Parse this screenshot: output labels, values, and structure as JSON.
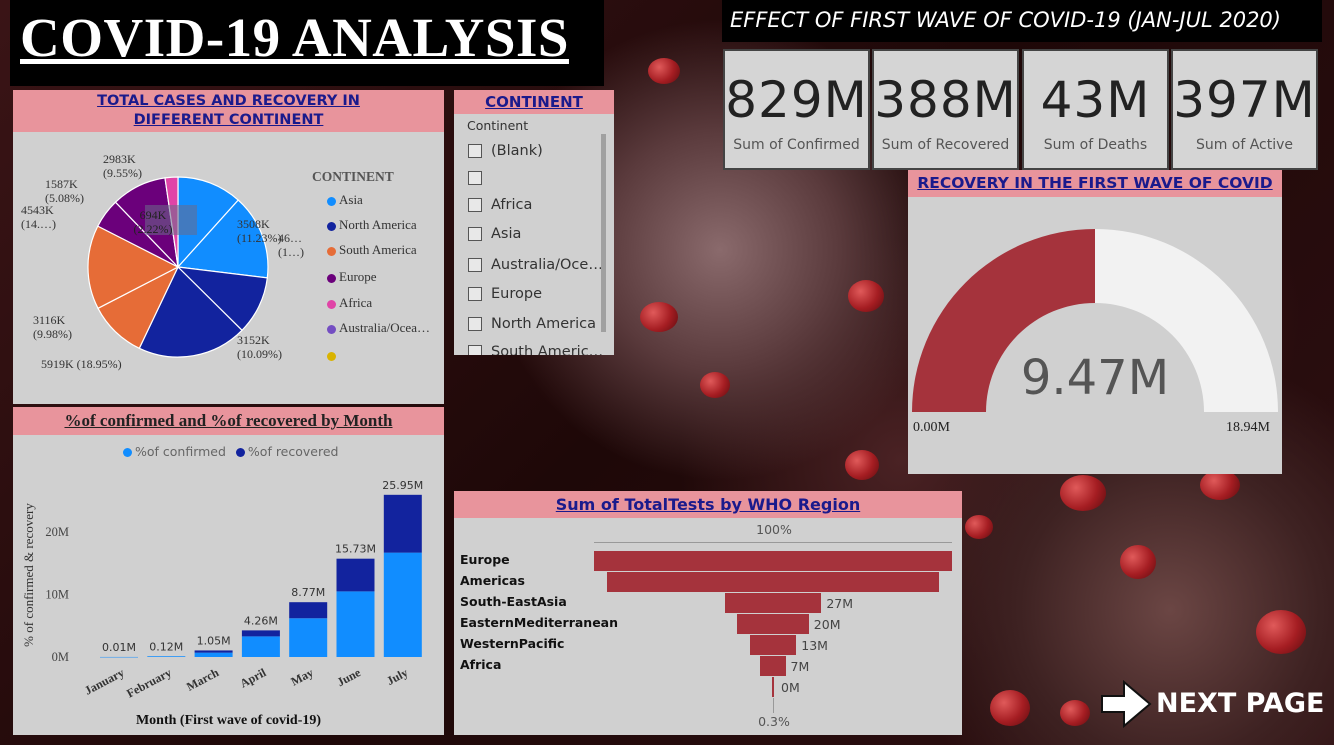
{
  "title": "COVID-19 ANALYSIS",
  "subtitle": "EFFECT OF FIRST WAVE OF COVID-19 (JAN-JUL 2020)",
  "cards": [
    {
      "value": "829M",
      "label": "Sum of Confirmed"
    },
    {
      "value": "388M",
      "label": "Sum of Recovered"
    },
    {
      "value": "43M",
      "label": "Sum of Deaths"
    },
    {
      "value": "397M",
      "label": "Sum of Active"
    }
  ],
  "pie": {
    "title": "TOTAL CASES AND RECOVERY IN DIFFERENT CONTINENT",
    "legend_title": "CONTINENT",
    "legend": [
      {
        "name": "Asia",
        "color": "#118dff"
      },
      {
        "name": "North America",
        "color": "#12239e"
      },
      {
        "name": "South America",
        "color": "#e66c37"
      },
      {
        "name": "Europe",
        "color": "#6b007b"
      },
      {
        "name": "Africa",
        "color": "#e044a7"
      },
      {
        "name": "Australia/Ocea…",
        "color": "#744ec2"
      },
      {
        "name": "",
        "color": "#d9b300"
      }
    ],
    "labels": [
      {
        "line1": "3508K",
        "line2": "(11.23%)"
      },
      {
        "line1": "46…",
        "line2": "(1…)"
      },
      {
        "line1": "3152K",
        "line2": "(10.09%)"
      },
      {
        "line1": "5919K (18.95%)",
        "line2": ""
      },
      {
        "line1": "3116K",
        "line2": "(9.98%)"
      },
      {
        "line1": "4543K",
        "line2": "(14.…)"
      },
      {
        "line1": "1587K",
        "line2": "(5.08%)"
      },
      {
        "line1": "2983K",
        "line2": "(9.55%)"
      },
      {
        "line1": "694K",
        "line2": "(2.22%)"
      }
    ]
  },
  "slicer": {
    "title": "CONTINENT",
    "header": "Continent",
    "items": [
      "(Blank)",
      "",
      "Africa",
      "Asia",
      "Australia/Oce…",
      "Europe",
      "North America",
      "South Americ…"
    ]
  },
  "gauge": {
    "title": "RECOVERY IN THE FIRST WAVE OF COVID",
    "value_label": "9.47M",
    "min_label": "0.00M",
    "max_label": "18.94M",
    "fraction": 0.5
  },
  "bar_chart": {
    "title": "%of confirmed and %of recovered by Month",
    "legend": [
      {
        "name": "%of confirmed",
        "color": "#118dff"
      },
      {
        "name": "%of recovered",
        "color": "#12239e"
      }
    ],
    "ylabel": "% of confirmed & recovery",
    "xlabel": "Month (First wave of covid-19)",
    "yticks": [
      "0M",
      "10M",
      "20M"
    ]
  },
  "funnel": {
    "title": "Sum of TotalTests by WHO Region",
    "top_label": "100%",
    "bottom_label": "0.3%"
  },
  "next_page": "NEXT PAGE",
  "chart_data": [
    {
      "type": "pie",
      "title": "TOTAL CASES AND RECOVERY IN DIFFERENT CONTINENT",
      "series": [
        {
          "name": "Asia",
          "values": [
            3508,
            4600
          ]
        },
        {
          "name": "North America",
          "values": [
            3152,
            5919
          ]
        },
        {
          "name": "South America",
          "values": [
            3116,
            4543
          ]
        },
        {
          "name": "Europe",
          "values": [
            1587,
            2983
          ]
        },
        {
          "name": "Africa",
          "values": [
            694
          ]
        }
      ],
      "slices_k": [
        3508,
        4600,
        3152,
        5919,
        3116,
        4543,
        1587,
        2983,
        694
      ],
      "slice_colors": [
        "#118dff",
        "#118dff",
        "#12239e",
        "#12239e",
        "#e66c37",
        "#e66c37",
        "#6b007b",
        "#6b007b",
        "#e044a7"
      ],
      "legend_position": "right"
    },
    {
      "type": "bar",
      "title": "%of confirmed and %of recovered by Month",
      "categories": [
        "January",
        "February",
        "March",
        "April",
        "May",
        "June",
        "July"
      ],
      "series": [
        {
          "name": "%of confirmed",
          "values": [
            0.01,
            0.12,
            0.7,
            3.3,
            6.2,
            10.5,
            16.7
          ]
        },
        {
          "name": "%of recovered",
          "values": [
            0.0,
            0.0,
            0.35,
            0.96,
            2.57,
            5.23,
            9.25
          ]
        }
      ],
      "totals": [
        "0.01M",
        "0.12M",
        "1.05M",
        "4.26M",
        "8.77M",
        "15.73M",
        "25.95M"
      ],
      "total_values": [
        0.01,
        0.12,
        1.05,
        4.26,
        8.77,
        15.73,
        25.95
      ],
      "xlabel": "Month (First wave of covid-19)",
      "ylabel": "% of confirmed & recovery",
      "ylim": [
        0,
        28
      ],
      "yticks": [
        0,
        10,
        20
      ],
      "legend_position": "top"
    },
    {
      "type": "bar",
      "title": "Sum of TotalTests by WHO Region",
      "categories": [
        "Europe",
        "Americas",
        "South-EastAsia",
        "EasternMediterranean",
        "WesternPacific",
        "Africa"
      ],
      "values": [
        100,
        93,
        27,
        20,
        13,
        7
      ],
      "value_labels": [
        "",
        "",
        "27M",
        "20M",
        "13M",
        "7M"
      ],
      "extra_label": "0M",
      "top_label": "100%",
      "bottom_label": "0.3%",
      "orientation": "funnel"
    }
  ]
}
